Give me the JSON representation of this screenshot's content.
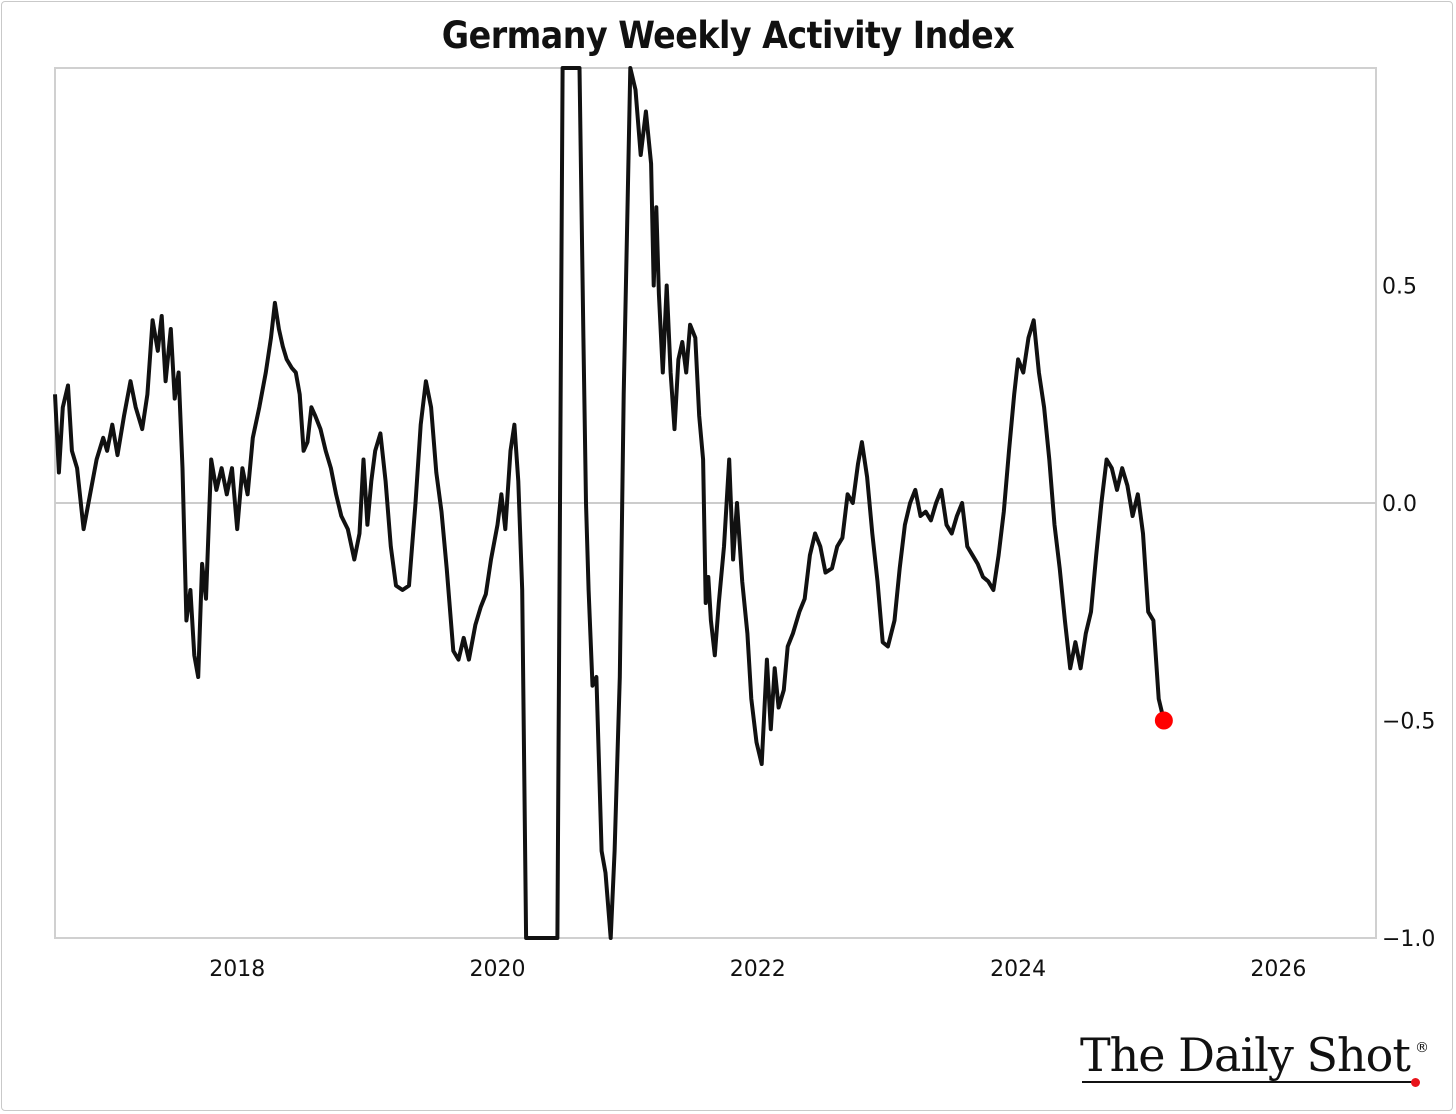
{
  "chart_data": {
    "type": "line",
    "title": "Germany Weekly Activity Index",
    "xlabel": "",
    "ylabel": "",
    "xlim": [
      2016.6,
      2026.75
    ],
    "ylim": [
      -1.0,
      1.0
    ],
    "x_ticks": [
      "2018",
      "2020",
      "2022",
      "2024",
      "2026"
    ],
    "y_ticks": [
      "0.5",
      "0.0",
      "−0.5",
      "−1.0"
    ],
    "y_axis_side": "right",
    "zero_line": true,
    "grid": false,
    "line_color": "#111111",
    "last_point_color": "#ff0000",
    "series": [
      {
        "points": [
          [
            2016.6,
            0.25
          ],
          [
            2016.63,
            0.07
          ],
          [
            2016.66,
            0.22
          ],
          [
            2016.7,
            0.27
          ],
          [
            2016.73,
            0.12
          ],
          [
            2016.77,
            0.08
          ],
          [
            2016.82,
            -0.06
          ],
          [
            2016.87,
            0.02
          ],
          [
            2016.92,
            0.1
          ],
          [
            2016.97,
            0.15
          ],
          [
            2017.0,
            0.12
          ],
          [
            2017.04,
            0.18
          ],
          [
            2017.08,
            0.11
          ],
          [
            2017.13,
            0.2
          ],
          [
            2017.18,
            0.28
          ],
          [
            2017.22,
            0.22
          ],
          [
            2017.27,
            0.17
          ],
          [
            2017.31,
            0.25
          ],
          [
            2017.35,
            0.42
          ],
          [
            2017.39,
            0.35
          ],
          [
            2017.42,
            0.43
          ],
          [
            2017.45,
            0.28
          ],
          [
            2017.49,
            0.4
          ],
          [
            2017.52,
            0.24
          ],
          [
            2017.55,
            0.3
          ],
          [
            2017.58,
            0.08
          ],
          [
            2017.61,
            -0.27
          ],
          [
            2017.64,
            -0.2
          ],
          [
            2017.67,
            -0.35
          ],
          [
            2017.7,
            -0.4
          ],
          [
            2017.73,
            -0.14
          ],
          [
            2017.76,
            -0.22
          ],
          [
            2017.8,
            0.1
          ],
          [
            2017.84,
            0.03
          ],
          [
            2017.88,
            0.08
          ],
          [
            2017.92,
            0.02
          ],
          [
            2017.96,
            0.08
          ],
          [
            2018.0,
            -0.06
          ],
          [
            2018.04,
            0.08
          ],
          [
            2018.08,
            0.02
          ],
          [
            2018.12,
            0.15
          ],
          [
            2018.17,
            0.22
          ],
          [
            2018.22,
            0.3
          ],
          [
            2018.26,
            0.38
          ],
          [
            2018.29,
            0.46
          ],
          [
            2018.32,
            0.4
          ],
          [
            2018.35,
            0.36
          ],
          [
            2018.38,
            0.33
          ],
          [
            2018.42,
            0.31
          ],
          [
            2018.45,
            0.3
          ],
          [
            2018.48,
            0.25
          ],
          [
            2018.51,
            0.12
          ],
          [
            2018.54,
            0.14
          ],
          [
            2018.57,
            0.22
          ],
          [
            2018.6,
            0.2
          ],
          [
            2018.64,
            0.17
          ],
          [
            2018.68,
            0.12
          ],
          [
            2018.72,
            0.08
          ],
          [
            2018.76,
            0.02
          ],
          [
            2018.8,
            -0.03
          ],
          [
            2018.85,
            -0.06
          ],
          [
            2018.9,
            -0.13
          ],
          [
            2018.94,
            -0.07
          ],
          [
            2018.97,
            0.1
          ],
          [
            2019.0,
            -0.05
          ],
          [
            2019.03,
            0.05
          ],
          [
            2019.06,
            0.12
          ],
          [
            2019.1,
            0.16
          ],
          [
            2019.14,
            0.05
          ],
          [
            2019.18,
            -0.1
          ],
          [
            2019.22,
            -0.19
          ],
          [
            2019.27,
            -0.2
          ],
          [
            2019.32,
            -0.19
          ],
          [
            2019.37,
            0.0
          ],
          [
            2019.41,
            0.18
          ],
          [
            2019.45,
            0.28
          ],
          [
            2019.49,
            0.22
          ],
          [
            2019.53,
            0.07
          ],
          [
            2019.57,
            -0.02
          ],
          [
            2019.61,
            -0.15
          ],
          [
            2019.66,
            -0.34
          ],
          [
            2019.7,
            -0.36
          ],
          [
            2019.74,
            -0.31
          ],
          [
            2019.78,
            -0.36
          ],
          [
            2019.83,
            -0.28
          ],
          [
            2019.87,
            -0.24
          ],
          [
            2019.91,
            -0.21
          ],
          [
            2019.95,
            -0.13
          ],
          [
            2020.0,
            -0.05
          ],
          [
            2020.03,
            0.02
          ],
          [
            2020.06,
            -0.06
          ],
          [
            2020.1,
            0.12
          ],
          [
            2020.13,
            0.18
          ],
          [
            2020.16,
            0.05
          ],
          [
            2020.19,
            -0.2
          ],
          [
            2020.22,
            -1.0
          ],
          [
            2020.46,
            -1.0
          ],
          [
            2020.5,
            1.0
          ],
          [
            2020.63,
            1.0
          ],
          [
            2020.66,
            0.38
          ],
          [
            2020.68,
            0.0
          ],
          [
            2020.7,
            -0.2
          ],
          [
            2020.73,
            -0.42
          ],
          [
            2020.76,
            -0.4
          ],
          [
            2020.8,
            -0.8
          ],
          [
            2020.83,
            -0.85
          ],
          [
            2020.87,
            -1.0
          ],
          [
            2020.9,
            -0.8
          ],
          [
            2020.94,
            -0.4
          ],
          [
            2020.97,
            0.25
          ],
          [
            2021.0,
            0.7
          ],
          [
            2021.02,
            1.0
          ],
          [
            2021.06,
            0.95
          ],
          [
            2021.1,
            0.8
          ],
          [
            2021.14,
            0.9
          ],
          [
            2021.18,
            0.78
          ],
          [
            2021.2,
            0.5
          ],
          [
            2021.22,
            0.68
          ],
          [
            2021.24,
            0.48
          ],
          [
            2021.27,
            0.3
          ],
          [
            2021.3,
            0.5
          ],
          [
            2021.33,
            0.3
          ],
          [
            2021.36,
            0.17
          ],
          [
            2021.39,
            0.33
          ],
          [
            2021.42,
            0.37
          ],
          [
            2021.45,
            0.3
          ],
          [
            2021.48,
            0.41
          ],
          [
            2021.52,
            0.38
          ],
          [
            2021.55,
            0.2
          ],
          [
            2021.58,
            0.1
          ],
          [
            2021.6,
            -0.23
          ],
          [
            2021.62,
            -0.17
          ],
          [
            2021.64,
            -0.27
          ],
          [
            2021.67,
            -0.35
          ],
          [
            2021.7,
            -0.23
          ],
          [
            2021.74,
            -0.1
          ],
          [
            2021.78,
            0.1
          ],
          [
            2021.81,
            -0.13
          ],
          [
            2021.84,
            0.0
          ],
          [
            2021.88,
            -0.18
          ],
          [
            2021.92,
            -0.3
          ],
          [
            2021.95,
            -0.45
          ],
          [
            2021.99,
            -0.55
          ],
          [
            2022.03,
            -0.6
          ],
          [
            2022.07,
            -0.36
          ],
          [
            2022.1,
            -0.52
          ],
          [
            2022.13,
            -0.38
          ],
          [
            2022.16,
            -0.47
          ],
          [
            2022.2,
            -0.43
          ],
          [
            2022.23,
            -0.33
          ],
          [
            2022.27,
            -0.3
          ],
          [
            2022.32,
            -0.25
          ],
          [
            2022.36,
            -0.22
          ],
          [
            2022.4,
            -0.12
          ],
          [
            2022.44,
            -0.07
          ],
          [
            2022.48,
            -0.1
          ],
          [
            2022.52,
            -0.16
          ],
          [
            2022.57,
            -0.15
          ],
          [
            2022.61,
            -0.1
          ],
          [
            2022.65,
            -0.08
          ],
          [
            2022.69,
            0.02
          ],
          [
            2022.73,
            0.0
          ],
          [
            2022.77,
            0.09
          ],
          [
            2022.8,
            0.14
          ],
          [
            2022.84,
            0.06
          ],
          [
            2022.88,
            -0.07
          ],
          [
            2022.92,
            -0.18
          ],
          [
            2022.96,
            -0.32
          ],
          [
            2023.0,
            -0.33
          ],
          [
            2023.05,
            -0.27
          ],
          [
            2023.09,
            -0.15
          ],
          [
            2023.13,
            -0.05
          ],
          [
            2023.17,
            0.0
          ],
          [
            2023.21,
            0.03
          ],
          [
            2023.25,
            -0.03
          ],
          [
            2023.29,
            -0.02
          ],
          [
            2023.33,
            -0.04
          ],
          [
            2023.37,
            0.0
          ],
          [
            2023.41,
            0.03
          ],
          [
            2023.45,
            -0.05
          ],
          [
            2023.49,
            -0.07
          ],
          [
            2023.53,
            -0.03
          ],
          [
            2023.57,
            0.0
          ],
          [
            2023.61,
            -0.1
          ],
          [
            2023.65,
            -0.12
          ],
          [
            2023.69,
            -0.14
          ],
          [
            2023.73,
            -0.17
          ],
          [
            2023.77,
            -0.18
          ],
          [
            2023.81,
            -0.2
          ],
          [
            2023.85,
            -0.12
          ],
          [
            2023.89,
            -0.02
          ],
          [
            2023.93,
            0.12
          ],
          [
            2023.97,
            0.25
          ],
          [
            2024.0,
            0.33
          ],
          [
            2024.04,
            0.3
          ],
          [
            2024.08,
            0.38
          ],
          [
            2024.12,
            0.42
          ],
          [
            2024.16,
            0.3
          ],
          [
            2024.2,
            0.22
          ],
          [
            2024.24,
            0.1
          ],
          [
            2024.28,
            -0.05
          ],
          [
            2024.32,
            -0.15
          ],
          [
            2024.36,
            -0.27
          ],
          [
            2024.4,
            -0.38
          ],
          [
            2024.44,
            -0.32
          ],
          [
            2024.48,
            -0.38
          ],
          [
            2024.52,
            -0.3
          ],
          [
            2024.56,
            -0.25
          ],
          [
            2024.6,
            -0.12
          ],
          [
            2024.64,
            0.0
          ],
          [
            2024.68,
            0.1
          ],
          [
            2024.72,
            0.08
          ],
          [
            2024.76,
            0.03
          ],
          [
            2024.8,
            0.08
          ],
          [
            2024.84,
            0.04
          ],
          [
            2024.88,
            -0.03
          ],
          [
            2024.92,
            0.02
          ],
          [
            2024.96,
            -0.07
          ],
          [
            2025.0,
            -0.25
          ],
          [
            2025.04,
            -0.27
          ],
          [
            2025.08,
            -0.45
          ],
          [
            2025.12,
            -0.5
          ]
        ]
      }
    ]
  },
  "branding": {
    "logo_text": "The Daily Shot",
    "registered_mark": "®"
  }
}
